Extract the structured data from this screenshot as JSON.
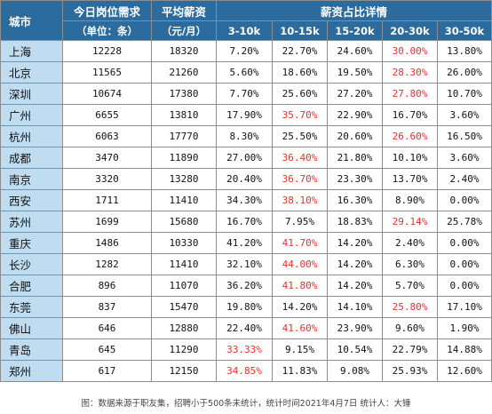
{
  "header": {
    "city": "城市",
    "demand_line1": "今日岗位需求",
    "demand_line2": "（单位：条）",
    "salary_line1": "平均薪资",
    "salary_line2": "（元/月）",
    "dist_title": "薪资占比详情",
    "ranges": [
      "3-10k",
      "10-15k",
      "15-20k",
      "20-30k",
      "30-50k"
    ]
  },
  "rows": [
    {
      "city": "上海",
      "demand": "12228",
      "salary": "18320",
      "p": [
        "7.20%",
        "22.70%",
        "24.60%",
        "30.00%",
        "13.80%"
      ],
      "red": 3
    },
    {
      "city": "北京",
      "demand": "11565",
      "salary": "21260",
      "p": [
        "5.60%",
        "18.60%",
        "19.50%",
        "28.30%",
        "26.00%"
      ],
      "red": 3
    },
    {
      "city": "深圳",
      "demand": "10674",
      "salary": "17380",
      "p": [
        "7.70%",
        "25.60%",
        "27.20%",
        "27.80%",
        "10.70%"
      ],
      "red": 3
    },
    {
      "city": "广州",
      "demand": "6655",
      "salary": "13810",
      "p": [
        "17.90%",
        "35.70%",
        "22.90%",
        "16.70%",
        "3.60%"
      ],
      "red": 1
    },
    {
      "city": "杭州",
      "demand": "6063",
      "salary": "17770",
      "p": [
        "8.30%",
        "25.50%",
        "20.60%",
        "26.60%",
        "16.50%"
      ],
      "red": 3
    },
    {
      "city": "成都",
      "demand": "3470",
      "salary": "11890",
      "p": [
        "27.00%",
        "36.40%",
        "21.80%",
        "10.10%",
        "3.60%"
      ],
      "red": 1
    },
    {
      "city": "南京",
      "demand": "3320",
      "salary": "13280",
      "p": [
        "20.40%",
        "36.70%",
        "23.30%",
        "13.70%",
        "2.40%"
      ],
      "red": 1
    },
    {
      "city": "西安",
      "demand": "1711",
      "salary": "11410",
      "p": [
        "34.30%",
        "38.10%",
        "16.30%",
        "8.90%",
        "0.00%"
      ],
      "red": 1
    },
    {
      "city": "苏州",
      "demand": "1699",
      "salary": "15680",
      "p": [
        "16.70%",
        "7.95%",
        "18.83%",
        "29.14%",
        "25.78%"
      ],
      "red": 3
    },
    {
      "city": "重庆",
      "demand": "1486",
      "salary": "10330",
      "p": [
        "41.20%",
        "41.70%",
        "14.20%",
        "2.40%",
        "0.00%"
      ],
      "red": 1
    },
    {
      "city": "长沙",
      "demand": "1282",
      "salary": "11410",
      "p": [
        "32.10%",
        "44.00%",
        "14.20%",
        "6.30%",
        "0.00%"
      ],
      "red": 1
    },
    {
      "city": "合肥",
      "demand": "896",
      "salary": "11070",
      "p": [
        "36.20%",
        "41.80%",
        "14.20%",
        "5.70%",
        "0.00%"
      ],
      "red": 1
    },
    {
      "city": "东莞",
      "demand": "837",
      "salary": "15470",
      "p": [
        "19.80%",
        "14.20%",
        "14.10%",
        "25.80%",
        "17.10%"
      ],
      "red": 3
    },
    {
      "city": "佛山",
      "demand": "646",
      "salary": "12880",
      "p": [
        "22.40%",
        "41.60%",
        "23.90%",
        "9.60%",
        "1.90%"
      ],
      "red": 1
    },
    {
      "city": "青岛",
      "demand": "645",
      "salary": "11290",
      "p": [
        "33.33%",
        "9.15%",
        "10.54%",
        "22.79%",
        "14.88%"
      ],
      "red": 0
    },
    {
      "city": "郑州",
      "demand": "617",
      "salary": "12150",
      "p": [
        "34.85%",
        "11.83%",
        "9.08%",
        "25.93%",
        "12.60%"
      ],
      "red": 0
    }
  ],
  "colors": {
    "header_bg": "#2c6b9d",
    "city_bg": "#bfdcf0",
    "highlight": "#e8312c"
  },
  "footer": "图：数据来源于职友集，招聘小于500条未统计，统计时间2021年4月7日   统计人：大锤"
}
